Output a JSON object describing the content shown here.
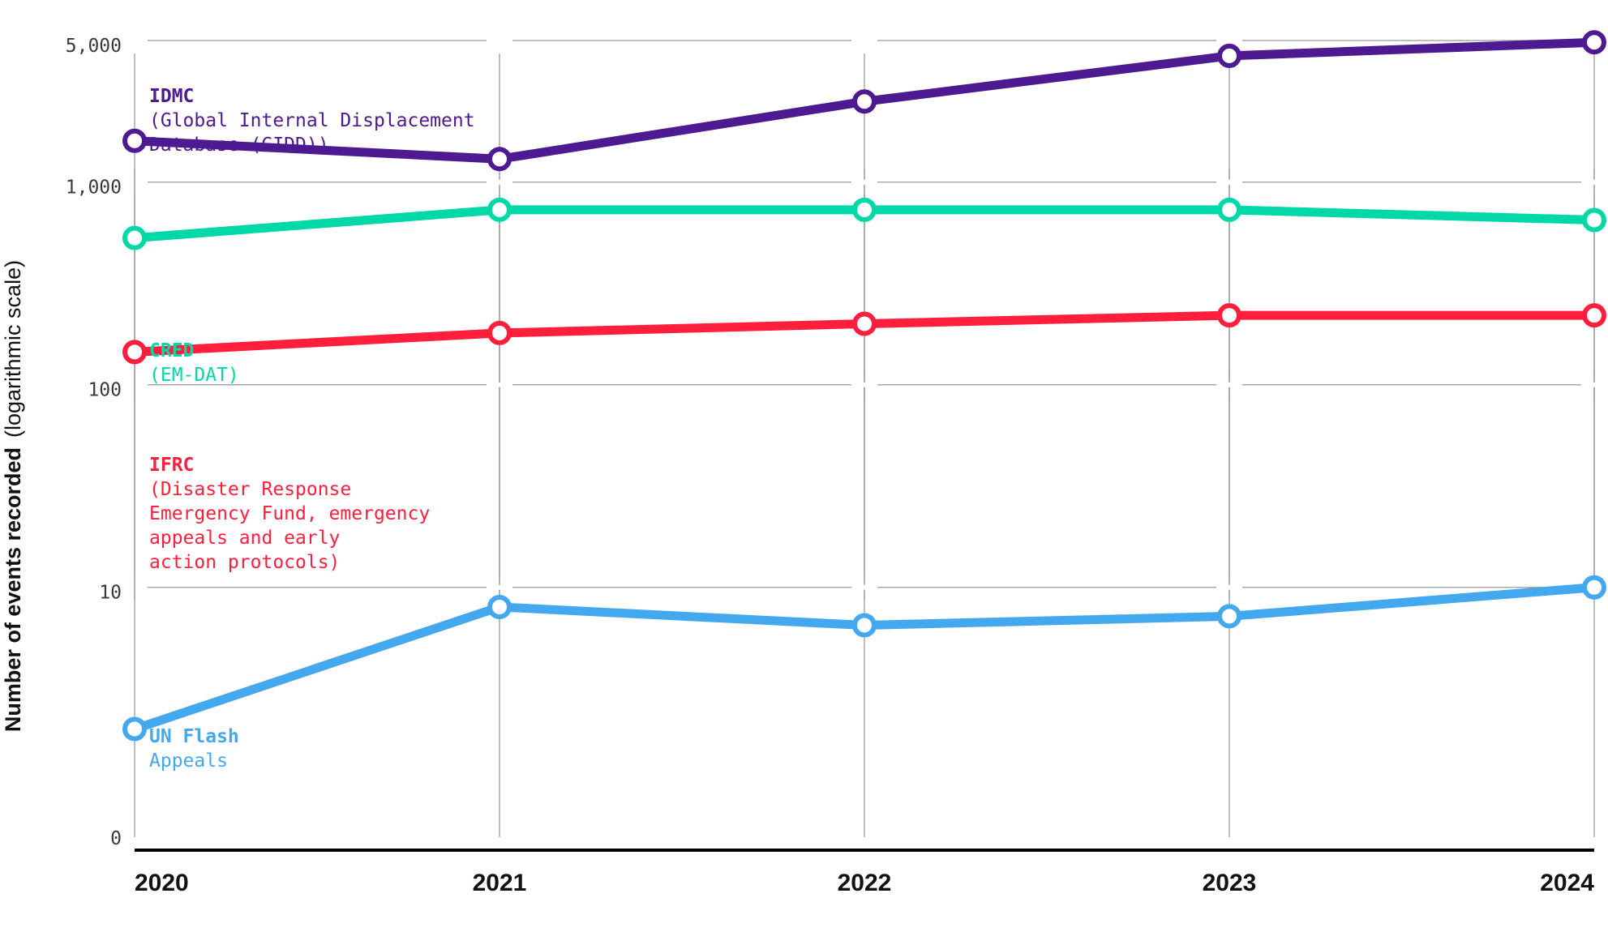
{
  "chart_data": {
    "type": "line",
    "yscale": "log",
    "ylabel": "Number of events recorded",
    "ylabel_note": "(logarithmic scale)",
    "x": [
      "2020",
      "2021",
      "2022",
      "2023",
      "2024"
    ],
    "y_ticks": [
      {
        "label": "0",
        "value": 0
      },
      {
        "label": "10",
        "value": 10
      },
      {
        "label": "100",
        "value": 100
      },
      {
        "label": "1,000",
        "value": 1000
      },
      {
        "label": "5,000",
        "value": 5000
      }
    ],
    "grid": true,
    "series": [
      {
        "name": "IDMC",
        "description": [
          "(Global Internal Displacement",
          "Database (GIDD))"
        ],
        "color": "#4e1a91",
        "values": [
          1600,
          1300,
          2500,
          4200,
          4900
        ]
      },
      {
        "name": "CRED",
        "description": [
          "(EM-DAT)"
        ],
        "color": "#00d8a7",
        "values": [
          530,
          730,
          730,
          730,
          650
        ]
      },
      {
        "name": "IFRC",
        "description": [
          "(Disaster Response",
          "Emergency Fund, emergency",
          "appeals and early",
          "action protocols)"
        ],
        "color": "#ff1f3d",
        "values": [
          145,
          180,
          200,
          220,
          220
        ]
      },
      {
        "name": "UN Flash",
        "description": [
          "Appeals"
        ],
        "color": "#44a8ef",
        "values": [
          2,
          8,
          6.5,
          7.2,
          10
        ]
      }
    ]
  }
}
